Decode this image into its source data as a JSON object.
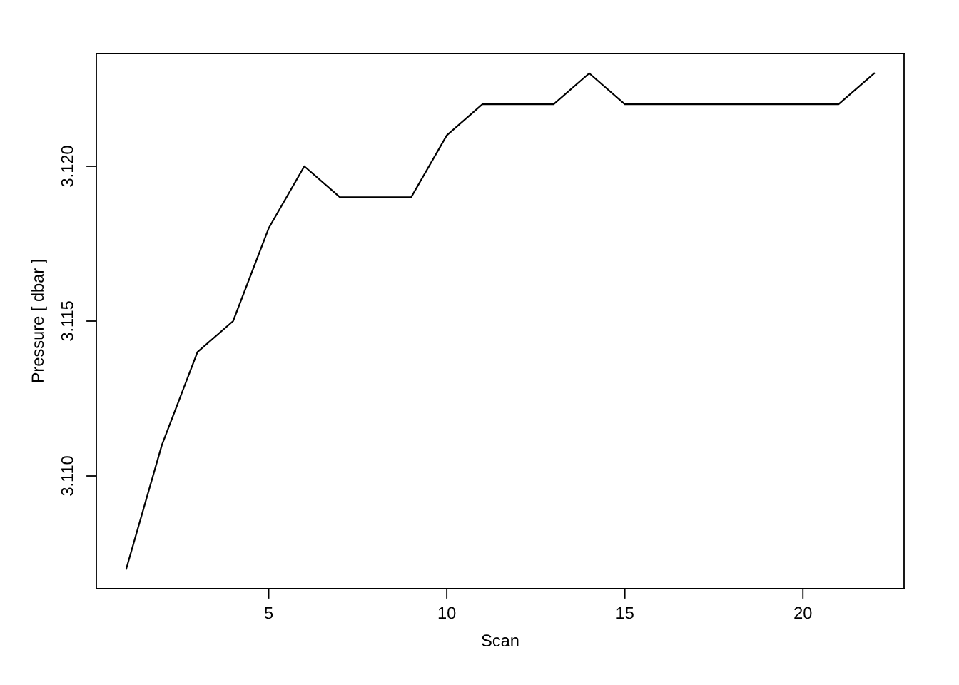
{
  "chart_data": {
    "type": "line",
    "xlabel": "Scan",
    "ylabel": "Pressure [ dbar ]",
    "x": [
      1,
      2,
      3,
      4,
      5,
      6,
      7,
      8,
      9,
      10,
      11,
      12,
      13,
      14,
      15,
      16,
      17,
      18,
      19,
      20,
      21,
      22
    ],
    "series": [
      {
        "color": "#000000",
        "values": [
          3.107,
          3.111,
          3.114,
          3.115,
          3.118,
          3.12,
          3.119,
          3.119,
          3.119,
          3.121,
          3.122,
          3.122,
          3.122,
          3.123,
          3.122,
          3.122,
          3.122,
          3.122,
          3.122,
          3.122,
          3.122,
          3.123
        ]
      }
    ],
    "xlim": [
      0.16,
      22.84
    ],
    "ylim": [
      3.10636,
      3.12364
    ],
    "xticks": [
      5,
      10,
      15,
      20
    ],
    "yticks": [
      {
        "value": 3.11,
        "label": "3.110"
      },
      {
        "value": 3.115,
        "label": "3.115"
      },
      {
        "value": 3.12,
        "label": "3.120"
      }
    ],
    "grid": false,
    "marker": "none",
    "line_style": "solid"
  }
}
